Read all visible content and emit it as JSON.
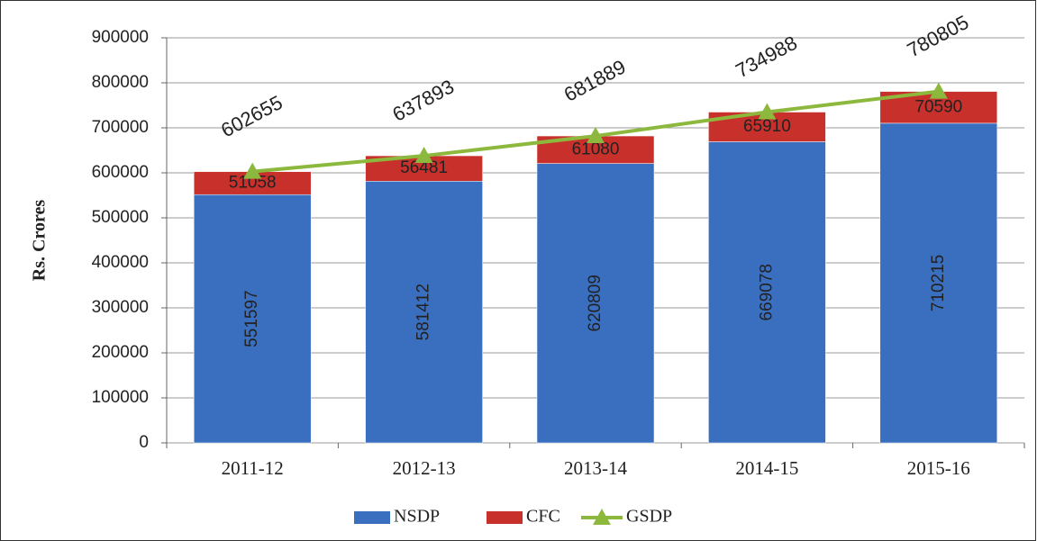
{
  "chart_data": {
    "type": "bar",
    "stacked": true,
    "y_label": "Rs. Crores",
    "categories": [
      "2011-12",
      "2012-13",
      "2013-14",
      "2014-15",
      "2015-16"
    ],
    "series": [
      {
        "name": "NSDP",
        "type": "bar",
        "color": "#3a6fc0",
        "values": [
          551597,
          581412,
          620809,
          669078,
          710215
        ]
      },
      {
        "name": "CFC",
        "type": "bar",
        "color": "#c8302b",
        "values": [
          51058,
          56481,
          61080,
          65910,
          70590
        ]
      },
      {
        "name": "GSDP",
        "type": "line",
        "color": "#8db83e",
        "values": [
          602655,
          637893,
          681889,
          734988,
          780805
        ]
      }
    ],
    "ylim": [
      0,
      900000
    ],
    "yticks": [
      0,
      100000,
      200000,
      300000,
      400000,
      500000,
      600000,
      700000,
      800000,
      900000
    ],
    "grid": true,
    "legend": "bottom"
  }
}
